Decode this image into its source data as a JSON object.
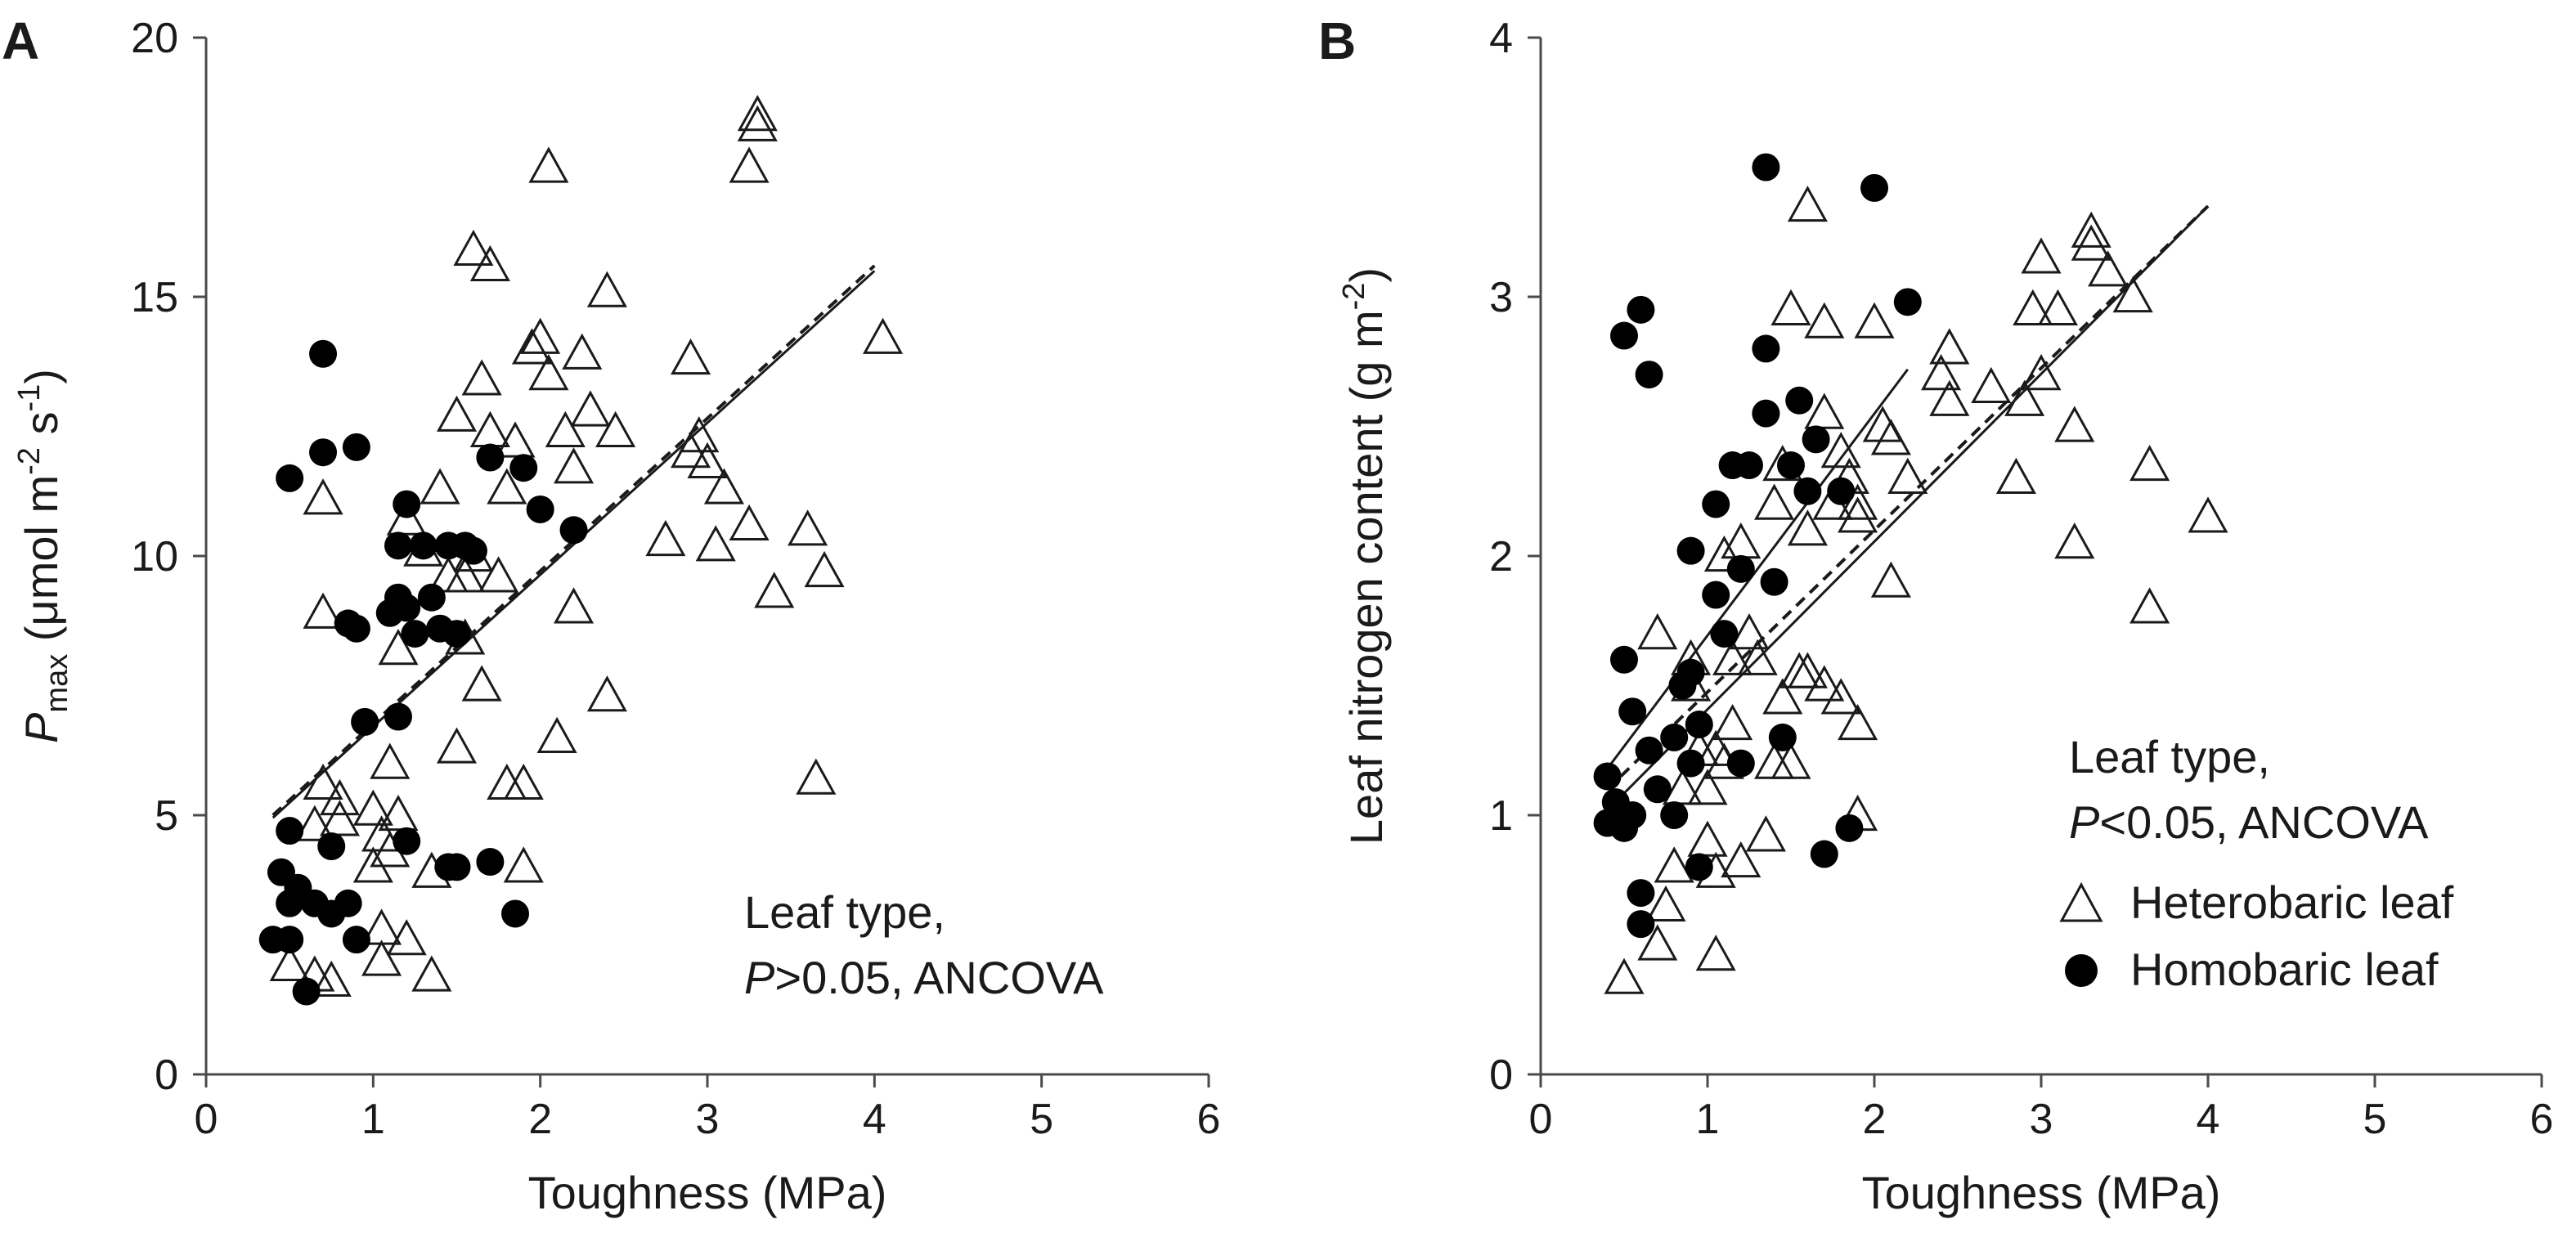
{
  "chart_data": [
    {
      "type": "scatter",
      "panel_label": "A",
      "xlabel": "Toughness (MPa)",
      "ylabel": {
        "main": "P",
        "sub": "max",
        "rest": " (μmol m",
        "sup1": "-2",
        "mid": " s",
        "sup2": "-1",
        "end": ")"
      },
      "xlim": [
        0,
        6
      ],
      "ylim": [
        0,
        20
      ],
      "xticks": [
        "0",
        "1",
        "2",
        "3",
        "4",
        "5",
        "6"
      ],
      "yticks": [
        "0",
        "5",
        "10",
        "15",
        "20"
      ],
      "annotation": {
        "line1": "Leaf type,",
        "p": "P",
        "line2_rest": ">0.05, ANCOVA"
      },
      "series": [
        {
          "name": "Heterobaric leaf",
          "marker": "triangle",
          "points": [
            [
              0.5,
              2.1
            ],
            [
              0.65,
              1.9
            ],
            [
              0.75,
              1.8
            ],
            [
              0.7,
              5.6
            ],
            [
              0.8,
              5.3
            ],
            [
              0.65,
              4.8
            ],
            [
              0.7,
              8.9
            ],
            [
              0.7,
              11.1
            ],
            [
              0.8,
              4.9
            ],
            [
              1.0,
              5.1
            ],
            [
              1.05,
              4.6
            ],
            [
              1.0,
              4.0
            ],
            [
              1.1,
              6.0
            ],
            [
              1.15,
              5.0
            ],
            [
              1.1,
              4.3
            ],
            [
              1.2,
              2.6
            ],
            [
              1.05,
              2.8
            ],
            [
              1.05,
              2.2
            ],
            [
              1.35,
              1.9
            ],
            [
              1.35,
              3.9
            ],
            [
              1.15,
              8.2
            ],
            [
              1.2,
              10.7
            ],
            [
              1.3,
              10.1
            ],
            [
              1.4,
              11.3
            ],
            [
              1.45,
              9.6
            ],
            [
              1.5,
              12.7
            ],
            [
              1.5,
              6.3
            ],
            [
              1.55,
              8.4
            ],
            [
              1.55,
              9.6
            ],
            [
              1.6,
              10.0
            ],
            [
              1.65,
              13.4
            ],
            [
              1.6,
              15.9
            ],
            [
              1.7,
              15.6
            ],
            [
              1.7,
              12.4
            ],
            [
              1.75,
              9.6
            ],
            [
              1.8,
              11.3
            ],
            [
              1.85,
              12.2
            ],
            [
              1.65,
              7.5
            ],
            [
              1.8,
              5.6
            ],
            [
              1.9,
              5.6
            ],
            [
              1.9,
              4.0
            ],
            [
              1.95,
              14.0
            ],
            [
              2.0,
              14.2
            ],
            [
              2.05,
              13.5
            ],
            [
              2.15,
              12.4
            ],
            [
              2.2,
              11.7
            ],
            [
              2.25,
              13.9
            ],
            [
              2.3,
              12.8
            ],
            [
              2.4,
              15.1
            ],
            [
              2.45,
              12.4
            ],
            [
              2.2,
              9.0
            ],
            [
              2.1,
              6.5
            ],
            [
              2.4,
              7.3
            ],
            [
              2.05,
              17.5
            ],
            [
              2.75,
              10.3
            ],
            [
              2.9,
              13.8
            ],
            [
              2.9,
              12.0
            ],
            [
              2.95,
              12.3
            ],
            [
              3.0,
              11.8
            ],
            [
              3.05,
              10.2
            ],
            [
              3.1,
              11.3
            ],
            [
              3.25,
              10.6
            ],
            [
              3.25,
              17.5
            ],
            [
              3.3,
              18.3
            ],
            [
              3.3,
              18.5
            ],
            [
              3.4,
              9.3
            ],
            [
              3.6,
              10.5
            ],
            [
              3.7,
              9.7
            ],
            [
              3.65,
              5.7
            ],
            [
              4.05,
              14.2
            ]
          ]
        },
        {
          "name": "Homobaric leaf",
          "marker": "circle",
          "points": [
            [
              0.4,
              2.6
            ],
            [
              0.45,
              3.9
            ],
            [
              0.5,
              4.7
            ],
            [
              0.5,
              3.3
            ],
            [
              0.55,
              3.6
            ],
            [
              0.5,
              2.6
            ],
            [
              0.6,
              1.6
            ],
            [
              0.65,
              3.3
            ],
            [
              0.75,
              4.4
            ],
            [
              0.75,
              3.1
            ],
            [
              0.85,
              3.3
            ],
            [
              0.9,
              2.6
            ],
            [
              0.5,
              11.5
            ],
            [
              0.7,
              12.0
            ],
            [
              0.9,
              12.1
            ],
            [
              0.7,
              13.9
            ],
            [
              0.85,
              8.7
            ],
            [
              0.9,
              8.6
            ],
            [
              0.95,
              6.8
            ],
            [
              1.1,
              8.9
            ],
            [
              1.15,
              10.2
            ],
            [
              1.15,
              9.2
            ],
            [
              1.2,
              9.0
            ],
            [
              1.2,
              11.0
            ],
            [
              1.25,
              8.5
            ],
            [
              1.3,
              10.2
            ],
            [
              1.35,
              9.2
            ],
            [
              1.4,
              8.6
            ],
            [
              1.45,
              4.0
            ],
            [
              1.45,
              10.2
            ],
            [
              1.5,
              4.0
            ],
            [
              1.5,
              8.5
            ],
            [
              1.55,
              10.2
            ],
            [
              1.6,
              10.1
            ],
            [
              1.15,
              6.9
            ],
            [
              1.2,
              4.5
            ],
            [
              1.7,
              4.1
            ],
            [
              1.85,
              3.1
            ],
            [
              1.7,
              11.9
            ],
            [
              1.9,
              11.7
            ],
            [
              2.0,
              10.9
            ],
            [
              2.2,
              10.5
            ]
          ]
        }
      ],
      "regression_lines": [
        {
          "style": "solid",
          "x": [
            0.4,
            4.0
          ],
          "y": [
            4.95,
            15.5
          ]
        },
        {
          "style": "dashed",
          "x": [
            0.4,
            4.0
          ],
          "y": [
            5.0,
            15.6
          ]
        }
      ]
    },
    {
      "type": "scatter",
      "panel_label": "B",
      "xlabel": "Toughness (MPa)",
      "ylabel": {
        "main": "Leaf nitrogen content (g m",
        "sup": "-2",
        "end": ")"
      },
      "xlim": [
        0,
        6
      ],
      "ylim": [
        0,
        4
      ],
      "xticks": [
        "0",
        "1",
        "2",
        "3",
        "4",
        "5",
        "6"
      ],
      "yticks": [
        "0",
        "1",
        "2",
        "3",
        "4"
      ],
      "annotation": {
        "line1": "Leaf type,",
        "p": "P",
        "line2_rest": "<0.05, ANCOVA"
      },
      "legend": [
        {
          "marker": "triangle",
          "label": "Heterobaric leaf"
        },
        {
          "marker": "circle",
          "label": "Homobaric leaf"
        }
      ],
      "series": [
        {
          "name": "Heterobaric leaf",
          "marker": "triangle",
          "points": [
            [
              0.5,
              0.37
            ],
            [
              0.7,
              0.5
            ],
            [
              0.75,
              0.65
            ],
            [
              0.7,
              1.7
            ],
            [
              0.8,
              0.8
            ],
            [
              0.85,
              1.1
            ],
            [
              0.9,
              1.5
            ],
            [
              0.9,
              1.6
            ],
            [
              0.95,
              1.25
            ],
            [
              1.0,
              0.9
            ],
            [
              1.05,
              0.78
            ],
            [
              1.0,
              1.1
            ],
            [
              1.05,
              1.25
            ],
            [
              1.05,
              0.46
            ],
            [
              1.1,
              1.2
            ],
            [
              1.15,
              1.35
            ],
            [
              1.15,
              1.6
            ],
            [
              1.2,
              0.82
            ],
            [
              1.25,
              1.7
            ],
            [
              1.3,
              1.6
            ],
            [
              1.35,
              0.92
            ],
            [
              1.4,
              1.2
            ],
            [
              1.45,
              1.45
            ],
            [
              1.5,
              1.2
            ],
            [
              1.55,
              1.55
            ],
            [
              1.6,
              1.55
            ],
            [
              1.7,
              1.5
            ],
            [
              1.8,
              1.45
            ],
            [
              1.9,
              1.35
            ],
            [
              1.9,
              1.0
            ],
            [
              1.1,
              2.0
            ],
            [
              1.2,
              2.05
            ],
            [
              1.4,
              2.2
            ],
            [
              1.45,
              2.35
            ],
            [
              1.5,
              2.95
            ],
            [
              1.6,
              2.1
            ],
            [
              1.6,
              3.35
            ],
            [
              1.7,
              2.9
            ],
            [
              1.7,
              2.55
            ],
            [
              1.75,
              2.2
            ],
            [
              1.8,
              2.4
            ],
            [
              1.85,
              2.3
            ],
            [
              1.9,
              2.2
            ],
            [
              1.9,
              2.15
            ],
            [
              2.0,
              2.9
            ],
            [
              2.05,
              2.5
            ],
            [
              2.1,
              2.45
            ],
            [
              2.2,
              2.3
            ],
            [
              2.1,
              1.9
            ],
            [
              2.4,
              2.7
            ],
            [
              2.45,
              2.8
            ],
            [
              2.45,
              2.6
            ],
            [
              2.7,
              2.65
            ],
            [
              2.85,
              2.3
            ],
            [
              2.9,
              2.6
            ],
            [
              2.95,
              2.95
            ],
            [
              3.0,
              3.15
            ],
            [
              3.0,
              2.7
            ],
            [
              3.1,
              2.95
            ],
            [
              3.2,
              2.5
            ],
            [
              3.2,
              2.05
            ],
            [
              3.3,
              3.2
            ],
            [
              3.3,
              3.25
            ],
            [
              3.4,
              3.1
            ],
            [
              3.55,
              3.0
            ],
            [
              3.65,
              2.35
            ],
            [
              3.65,
              1.8
            ],
            [
              4.0,
              2.15
            ]
          ]
        },
        {
          "name": "Homobaric leaf",
          "marker": "circle",
          "points": [
            [
              0.4,
              1.15
            ],
            [
              0.4,
              0.97
            ],
            [
              0.45,
              1.05
            ],
            [
              0.5,
              0.95
            ],
            [
              0.5,
              1.6
            ],
            [
              0.55,
              1.0
            ],
            [
              0.55,
              1.4
            ],
            [
              0.6,
              0.7
            ],
            [
              0.6,
              0.58
            ],
            [
              0.65,
              1.25
            ],
            [
              0.7,
              1.1
            ],
            [
              0.8,
              1.3
            ],
            [
              0.8,
              1.0
            ],
            [
              0.85,
              1.5
            ],
            [
              0.9,
              1.55
            ],
            [
              0.9,
              1.2
            ],
            [
              0.95,
              1.35
            ],
            [
              0.95,
              0.8
            ],
            [
              0.9,
              2.02
            ],
            [
              1.05,
              2.2
            ],
            [
              1.05,
              1.85
            ],
            [
              1.1,
              1.7
            ],
            [
              1.15,
              2.35
            ],
            [
              1.2,
              1.95
            ],
            [
              1.2,
              1.2
            ],
            [
              1.25,
              2.35
            ],
            [
              1.35,
              2.55
            ],
            [
              1.35,
              2.8
            ],
            [
              1.4,
              1.9
            ],
            [
              1.45,
              1.3
            ],
            [
              1.5,
              2.35
            ],
            [
              1.55,
              2.6
            ],
            [
              1.6,
              2.25
            ],
            [
              1.65,
              2.45
            ],
            [
              1.7,
              0.85
            ],
            [
              1.8,
              2.25
            ],
            [
              1.85,
              0.95
            ],
            [
              1.35,
              3.5
            ],
            [
              2.0,
              3.42
            ],
            [
              2.2,
              2.98
            ],
            [
              0.5,
              2.85
            ],
            [
              0.6,
              2.95
            ],
            [
              0.65,
              2.7
            ]
          ]
        }
      ],
      "regression_lines": [
        {
          "style": "solid",
          "x": [
            0.4,
            2.2
          ],
          "y": [
            1.18,
            2.72
          ]
        },
        {
          "style": "solid",
          "x": [
            0.4,
            4.0
          ],
          "y": [
            1.02,
            3.35
          ]
        },
        {
          "style": "dashed",
          "x": [
            0.4,
            4.0
          ],
          "y": [
            1.1,
            3.35
          ]
        }
      ]
    }
  ]
}
